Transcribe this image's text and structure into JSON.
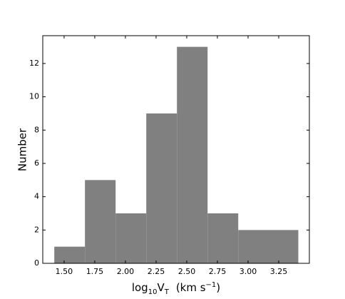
{
  "chart_data": {
    "type": "histogram",
    "xlabel": [
      "log",
      "10",
      "V",
      "T",
      "(km s",
      "−1",
      ")"
    ],
    "ylabel": "Number",
    "bins": [
      1.42,
      1.67,
      1.92,
      2.17,
      2.42,
      2.67,
      2.92,
      3.16,
      3.41
    ],
    "values": [
      1,
      5,
      3,
      9,
      13,
      3,
      2,
      2
    ],
    "color": "#808080",
    "xlim": [
      1.326,
      3.5
    ],
    "ylim": [
      0,
      13.67
    ],
    "xticks": [
      {
        "value": 1.5,
        "label": "1.50"
      },
      1.75,
      {
        "value": 2,
        "label": "2.00"
      },
      2.25,
      {
        "value": 2.5,
        "label": "2.50"
      },
      2.75,
      {
        "value": 3,
        "label": "3.00"
      },
      3.25
    ],
    "yticks": [
      0,
      2,
      4,
      6,
      8,
      10,
      12
    ],
    "grid": false
  }
}
